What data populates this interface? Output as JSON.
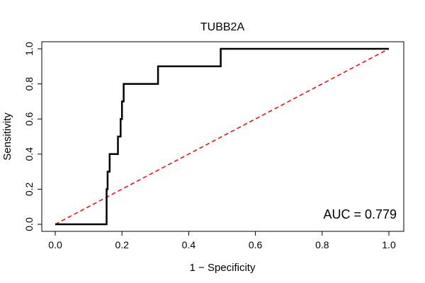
{
  "chart_data": {
    "type": "line",
    "title": "TUBB2A",
    "xlabel": "1 − Specificity",
    "ylabel": "Sensitivity",
    "xlim": [
      0,
      1
    ],
    "ylim": [
      0,
      1
    ],
    "x_ticks": [
      "0.0",
      "0.2",
      "0.4",
      "0.6",
      "0.8",
      "1.0"
    ],
    "y_ticks": [
      "0.0",
      "0.2",
      "0.4",
      "0.6",
      "0.8",
      "1.0"
    ],
    "grid": false,
    "annotation": "AUC = 0.779",
    "annotation_position": "bottom-right",
    "series": [
      {
        "color": "#000000",
        "style": "solid",
        "x": [
          0.0,
          0.154,
          0.154,
          0.157,
          0.157,
          0.163,
          0.163,
          0.188,
          0.188,
          0.196,
          0.196,
          0.2,
          0.2,
          0.205,
          0.205,
          0.308,
          0.308,
          0.496,
          0.496,
          1.0
        ],
        "y": [
          0.0,
          0.0,
          0.2,
          0.2,
          0.3,
          0.3,
          0.4,
          0.4,
          0.5,
          0.5,
          0.6,
          0.6,
          0.7,
          0.7,
          0.8,
          0.8,
          0.9,
          0.9,
          1.0,
          1.0
        ]
      },
      {
        "color": "#ff0000",
        "style": "dashed",
        "x": [
          0.0,
          1.0
        ],
        "y": [
          0.0,
          1.0
        ]
      }
    ]
  }
}
